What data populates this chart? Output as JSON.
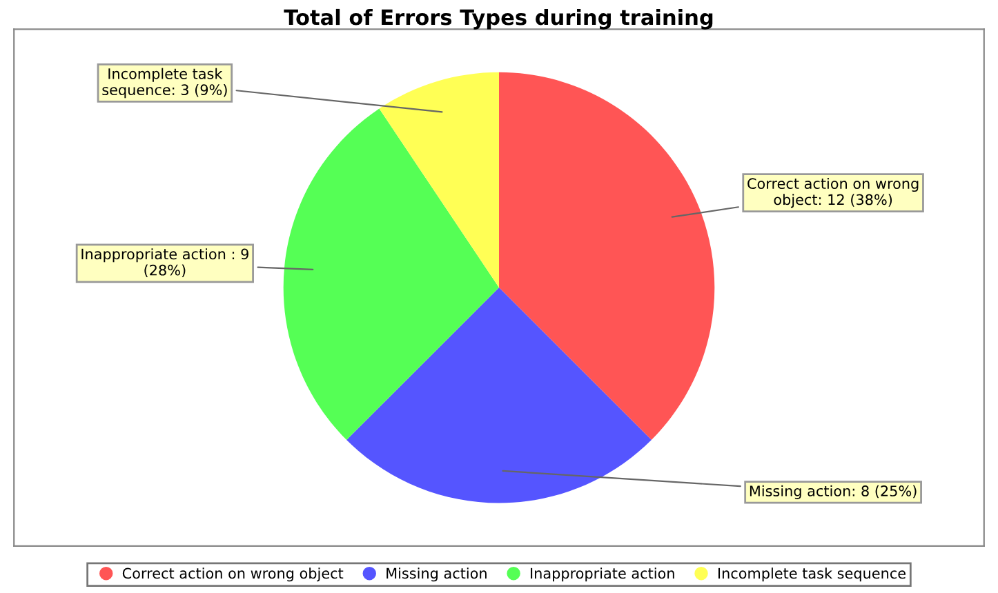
{
  "chart_data": {
    "type": "pie",
    "title": "Total of Errors Types during training",
    "categories": [
      "Correct action on wrong object",
      "Missing action",
      "Inappropriate action",
      "Incomplete task sequence"
    ],
    "values": [
      12,
      8,
      9,
      3
    ],
    "colors": [
      "#ff5555",
      "#5555ff",
      "#55ff55",
      "#ffff55"
    ],
    "value_labels": [
      "Correct action on wrong object: 12 (38%)",
      "Missing action: 8 (25%)",
      "Inappropriate action : 9 (28%)",
      "Incomplete task sequence: 3 (9%)"
    ],
    "legend": "bottom"
  }
}
